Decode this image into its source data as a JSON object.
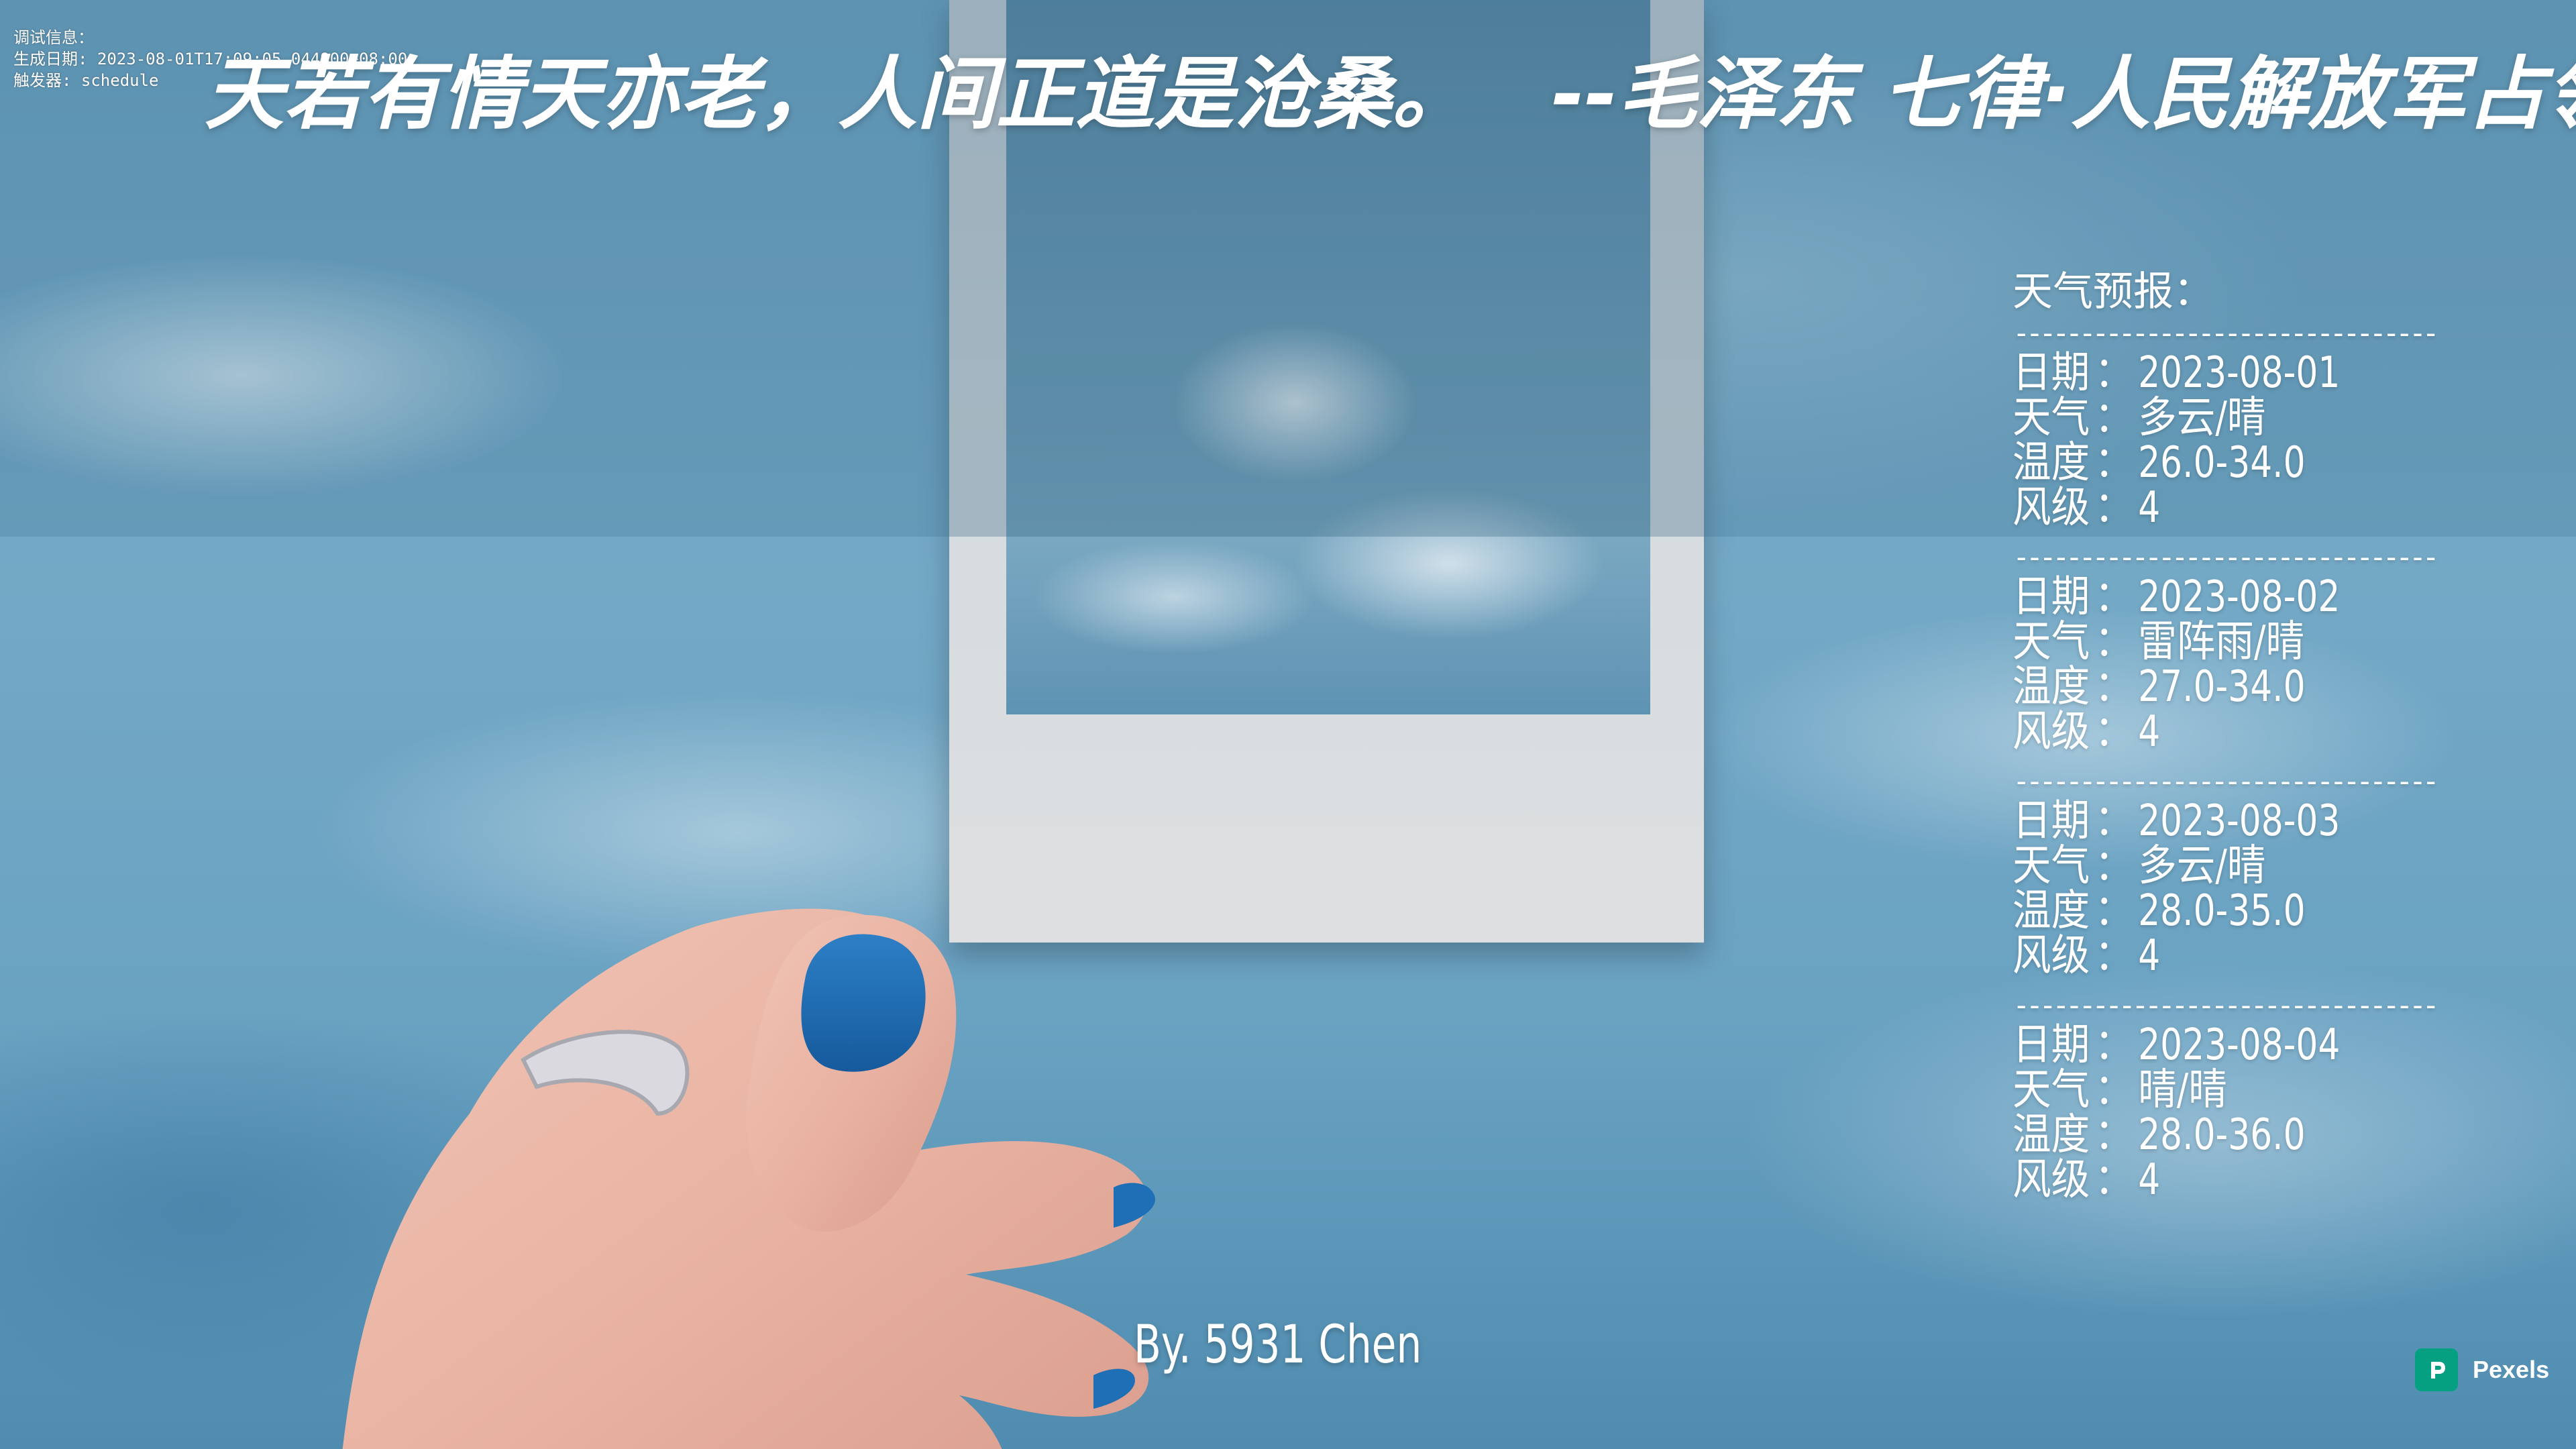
{
  "debug": {
    "heading": "调试信息：",
    "generated": "生成日期: 2023-08-01T17:09:05.044900+08:00",
    "trigger": "触发器: schedule"
  },
  "quote": {
    "text": "天若有情天亦老，人间正道是沧桑。",
    "attribution": "--毛泽东 七律·人民解放军占领南京"
  },
  "weather": {
    "title": "天气预报：",
    "divider": "--------------------------------",
    "labels": {
      "date": "日期",
      "weather": "天气",
      "temperature": "温度",
      "wind": "风级",
      "separator": "："
    },
    "days": [
      {
        "date": "2023-08-01",
        "weather": "多云/晴",
        "temperature": "26.0-34.0",
        "wind": "4"
      },
      {
        "date": "2023-08-02",
        "weather": "雷阵雨/晴",
        "temperature": "27.0-34.0",
        "wind": "4"
      },
      {
        "date": "2023-08-03",
        "weather": "多云/晴",
        "temperature": "28.0-35.0",
        "wind": "4"
      },
      {
        "date": "2023-08-04",
        "weather": "晴/晴",
        "temperature": "28.0-36.0",
        "wind": "4"
      }
    ]
  },
  "signature": "By. 5931 Chen",
  "pexels": {
    "label": "Pexels",
    "brand_color": "#05a081"
  }
}
